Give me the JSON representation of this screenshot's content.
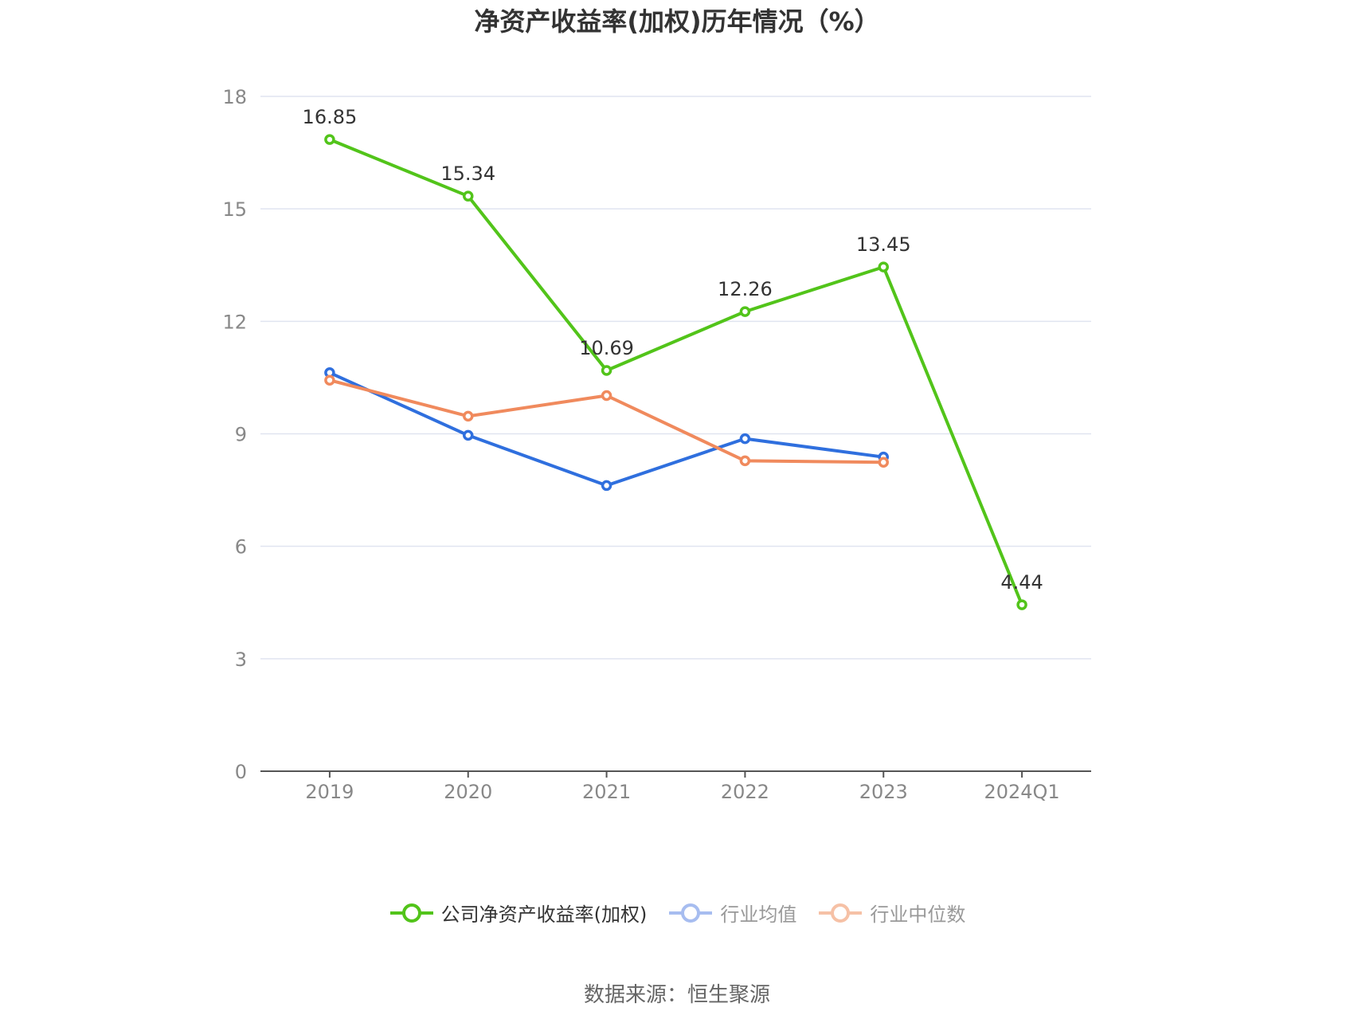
{
  "chart_data": {
    "type": "line",
    "title": "净资产收益率(加权)历年情况（%）",
    "categories": [
      "2019",
      "2020",
      "2021",
      "2022",
      "2023",
      "2024Q1"
    ],
    "yticks": [
      "0",
      "3",
      "6",
      "9",
      "12",
      "15",
      "18"
    ],
    "ylim": [
      0,
      18
    ],
    "grid": true,
    "legend_position": "bottom",
    "series": [
      {
        "name": "公司净资产收益率(加权)",
        "color": "#52c41a",
        "values": [
          16.85,
          15.34,
          10.69,
          12.26,
          13.45,
          4.44
        ],
        "labels": [
          "16.85",
          "15.34",
          "10.69",
          "12.26",
          "13.45",
          "4.44"
        ],
        "active": true
      },
      {
        "name": "行业均值",
        "color": "#2f6fde",
        "values": [
          10.63,
          8.96,
          7.62,
          8.87,
          8.38,
          null
        ],
        "active": false
      },
      {
        "name": "行业中位数",
        "color": "#f08a5d",
        "values": [
          10.43,
          9.47,
          10.02,
          8.28,
          8.24,
          null
        ],
        "active": false
      }
    ],
    "source": "数据来源：恒生聚源"
  }
}
